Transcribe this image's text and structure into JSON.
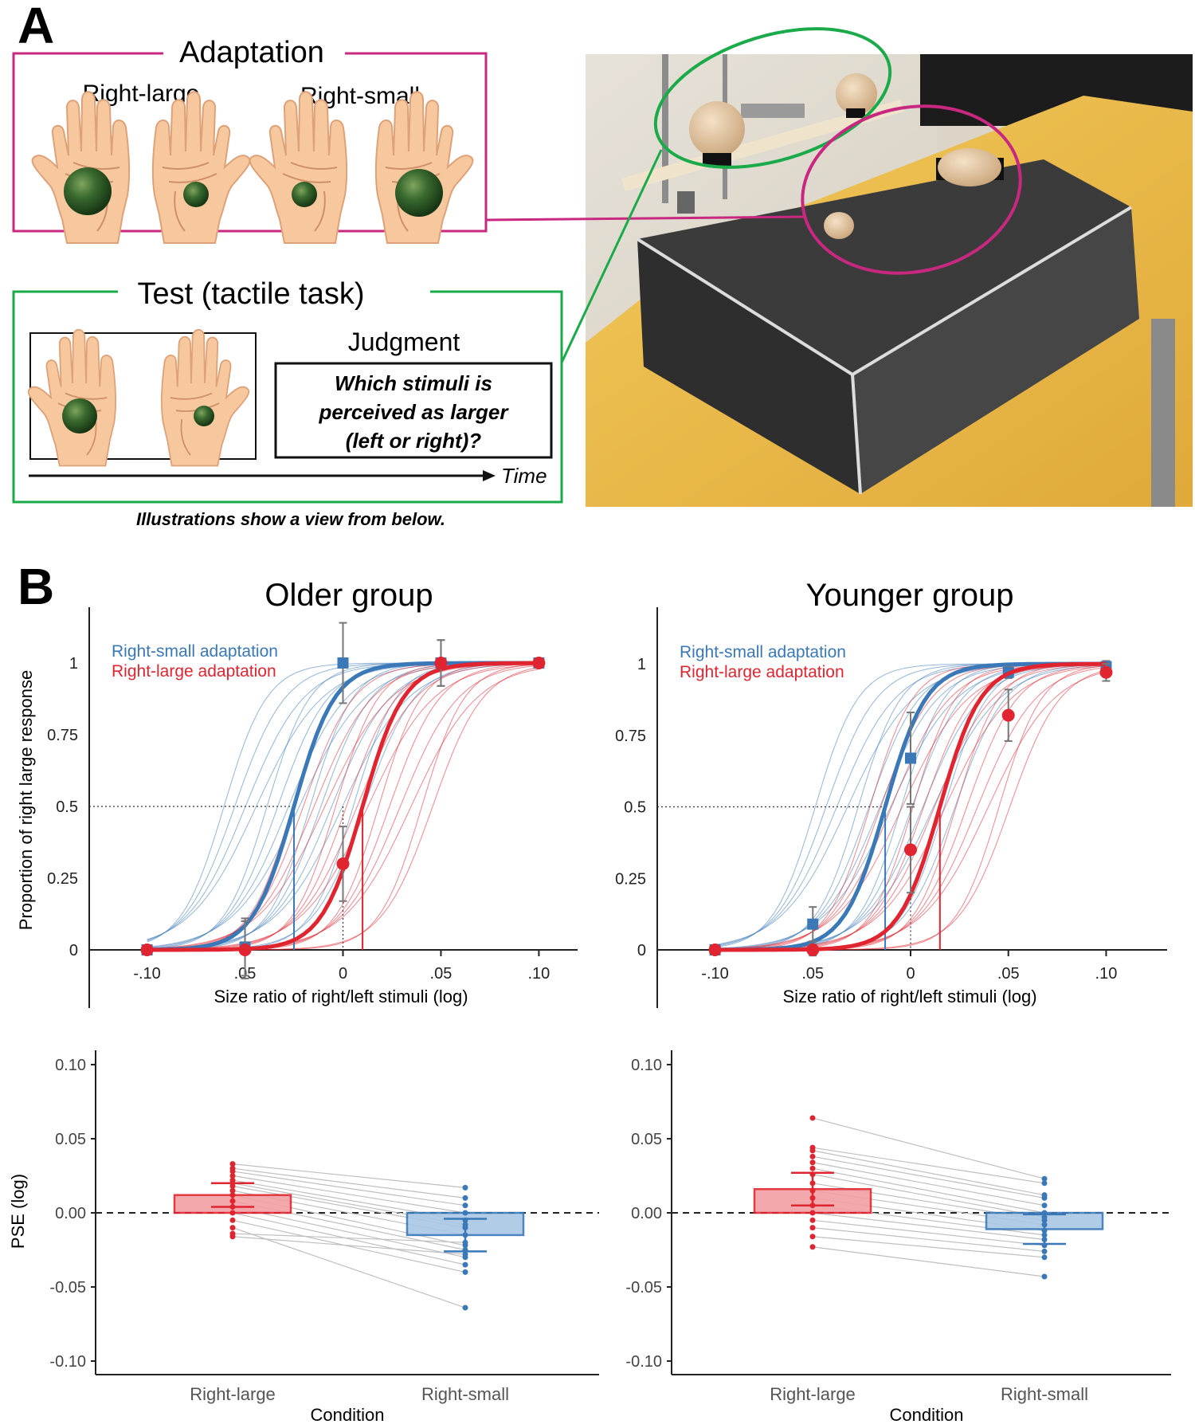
{
  "panel_a": {
    "letter": "A",
    "adaptation": {
      "title": "Adaptation",
      "label_left": "Right-large",
      "label_right": "Right-small"
    },
    "test": {
      "title": "Test (tactile task)",
      "judgment_title": "Judgment",
      "question_line1": "Which stimuli is",
      "question_line2": "perceived as larger",
      "question_line3": "(left or right)?",
      "time_label": "Time"
    },
    "caption": "Illustrations show a view from below.",
    "colors": {
      "adaptation_frame": "#c8287f",
      "test_frame": "#1aaa4a",
      "ball": "#2f5f2a",
      "wood": "#e3c7a0",
      "box": "#3a3a3a",
      "table": "#e9bb4a"
    }
  },
  "panel_b": {
    "letter": "B",
    "older_title": "Older group",
    "younger_title": "Younger group",
    "legend_small": "Right-small adaptation",
    "legend_large": "Right-large adaptation",
    "curve_ylabel": "Proportion of right large response",
    "curve_xlabel": "Size ratio of right/left stimuli (log)",
    "curve_xticks": [
      "-.10",
      ".05",
      "0",
      ".05",
      ".10"
    ],
    "curve_yticks": [
      "0",
      "0.25",
      "0.5",
      "0.75",
      "1"
    ],
    "bar_ylabel": "PSE (log)",
    "bar_xlabel": "Condition",
    "bar_yticks": [
      "-0.10",
      "-0.05",
      "0.00",
      "0.05",
      "0.10"
    ],
    "bar_categories": [
      "Right-large",
      "Right-small"
    ],
    "colors": {
      "small": "#3a78b8",
      "large": "#e02530",
      "small_fill": "#a9c7e4",
      "large_fill": "#f2a0a3",
      "individual": "#bfbfbf"
    }
  },
  "chart_data": [
    {
      "type": "line",
      "title": "Older group",
      "xlabel": "Size ratio of right/left stimuli (log)",
      "ylabel": "Proportion of right large response",
      "xlim": [
        -0.11,
        0.11
      ],
      "ylim": [
        0,
        1
      ],
      "x": [
        -0.1,
        -0.05,
        0,
        0.05,
        0.1
      ],
      "series": [
        {
          "name": "Right-small adaptation",
          "values": [
            0,
            0.01,
            1.0,
            1.0,
            1.0
          ],
          "errors": [
            0,
            0.1,
            0.14,
            0.08,
            0
          ],
          "pse": -0.025
        },
        {
          "name": "Right-large adaptation",
          "values": [
            0,
            0.0,
            0.3,
            1.0,
            1.0
          ],
          "errors": [
            0,
            0.1,
            0.13,
            0.08,
            0
          ],
          "pse": 0.01
        }
      ]
    },
    {
      "type": "line",
      "title": "Younger group",
      "xlabel": "Size ratio of right/left stimuli (log)",
      "ylabel": "Proportion of right large response",
      "xlim": [
        -0.11,
        0.11
      ],
      "ylim": [
        0,
        1
      ],
      "x": [
        -0.1,
        -0.05,
        0,
        0.05,
        0.1
      ],
      "series": [
        {
          "name": "Right-small adaptation",
          "values": [
            0,
            0.09,
            0.67,
            0.97,
            0.99
          ],
          "errors": [
            0,
            0.06,
            0.16,
            0.02,
            0.02
          ],
          "pse": -0.013
        },
        {
          "name": "Right-large adaptation",
          "values": [
            0,
            0.0,
            0.35,
            0.82,
            0.97
          ],
          "errors": [
            0,
            0.02,
            0.15,
            0.09,
            0.03
          ],
          "pse": 0.015
        }
      ]
    },
    {
      "type": "bar",
      "title": "",
      "xlabel": "Condition",
      "ylabel": "PSE (log)",
      "ylim": [
        -0.1,
        0.1
      ],
      "categories": [
        "Right-large",
        "Right-small"
      ],
      "values": [
        0.012,
        -0.015
      ],
      "errors": [
        0.008,
        0.011
      ],
      "individual_pairs": [
        [
          0.033,
          0.017
        ],
        [
          0.03,
          0.01
        ],
        [
          0.028,
          0.005
        ],
        [
          0.025,
          0.0
        ],
        [
          0.022,
          -0.005
        ],
        [
          0.018,
          -0.01
        ],
        [
          0.015,
          -0.015
        ],
        [
          0.012,
          -0.022
        ],
        [
          0.008,
          -0.025
        ],
        [
          0.004,
          -0.03
        ],
        [
          0.0,
          -0.035
        ],
        [
          -0.005,
          -0.04
        ],
        [
          -0.01,
          -0.064
        ],
        [
          -0.014,
          -0.02
        ],
        [
          -0.016,
          -0.028
        ],
        [
          0.02,
          -0.008
        ]
      ]
    },
    {
      "type": "bar",
      "title": "",
      "xlabel": "Condition",
      "ylabel": "PSE (log)",
      "ylim": [
        -0.1,
        0.1
      ],
      "categories": [
        "Right-large",
        "Right-small"
      ],
      "values": [
        0.016,
        -0.011
      ],
      "errors": [
        0.011,
        0.01
      ],
      "individual_pairs": [
        [
          0.064,
          0.023
        ],
        [
          0.044,
          0.02
        ],
        [
          0.042,
          0.012
        ],
        [
          0.038,
          0.01
        ],
        [
          0.034,
          0.005
        ],
        [
          0.03,
          0.0
        ],
        [
          0.026,
          -0.003
        ],
        [
          0.02,
          -0.005
        ],
        [
          0.015,
          -0.008
        ],
        [
          0.01,
          -0.012
        ],
        [
          0.005,
          -0.015
        ],
        [
          0.0,
          -0.018
        ],
        [
          -0.005,
          -0.022
        ],
        [
          -0.01,
          -0.026
        ],
        [
          -0.016,
          -0.03
        ],
        [
          -0.023,
          -0.043
        ]
      ]
    }
  ]
}
